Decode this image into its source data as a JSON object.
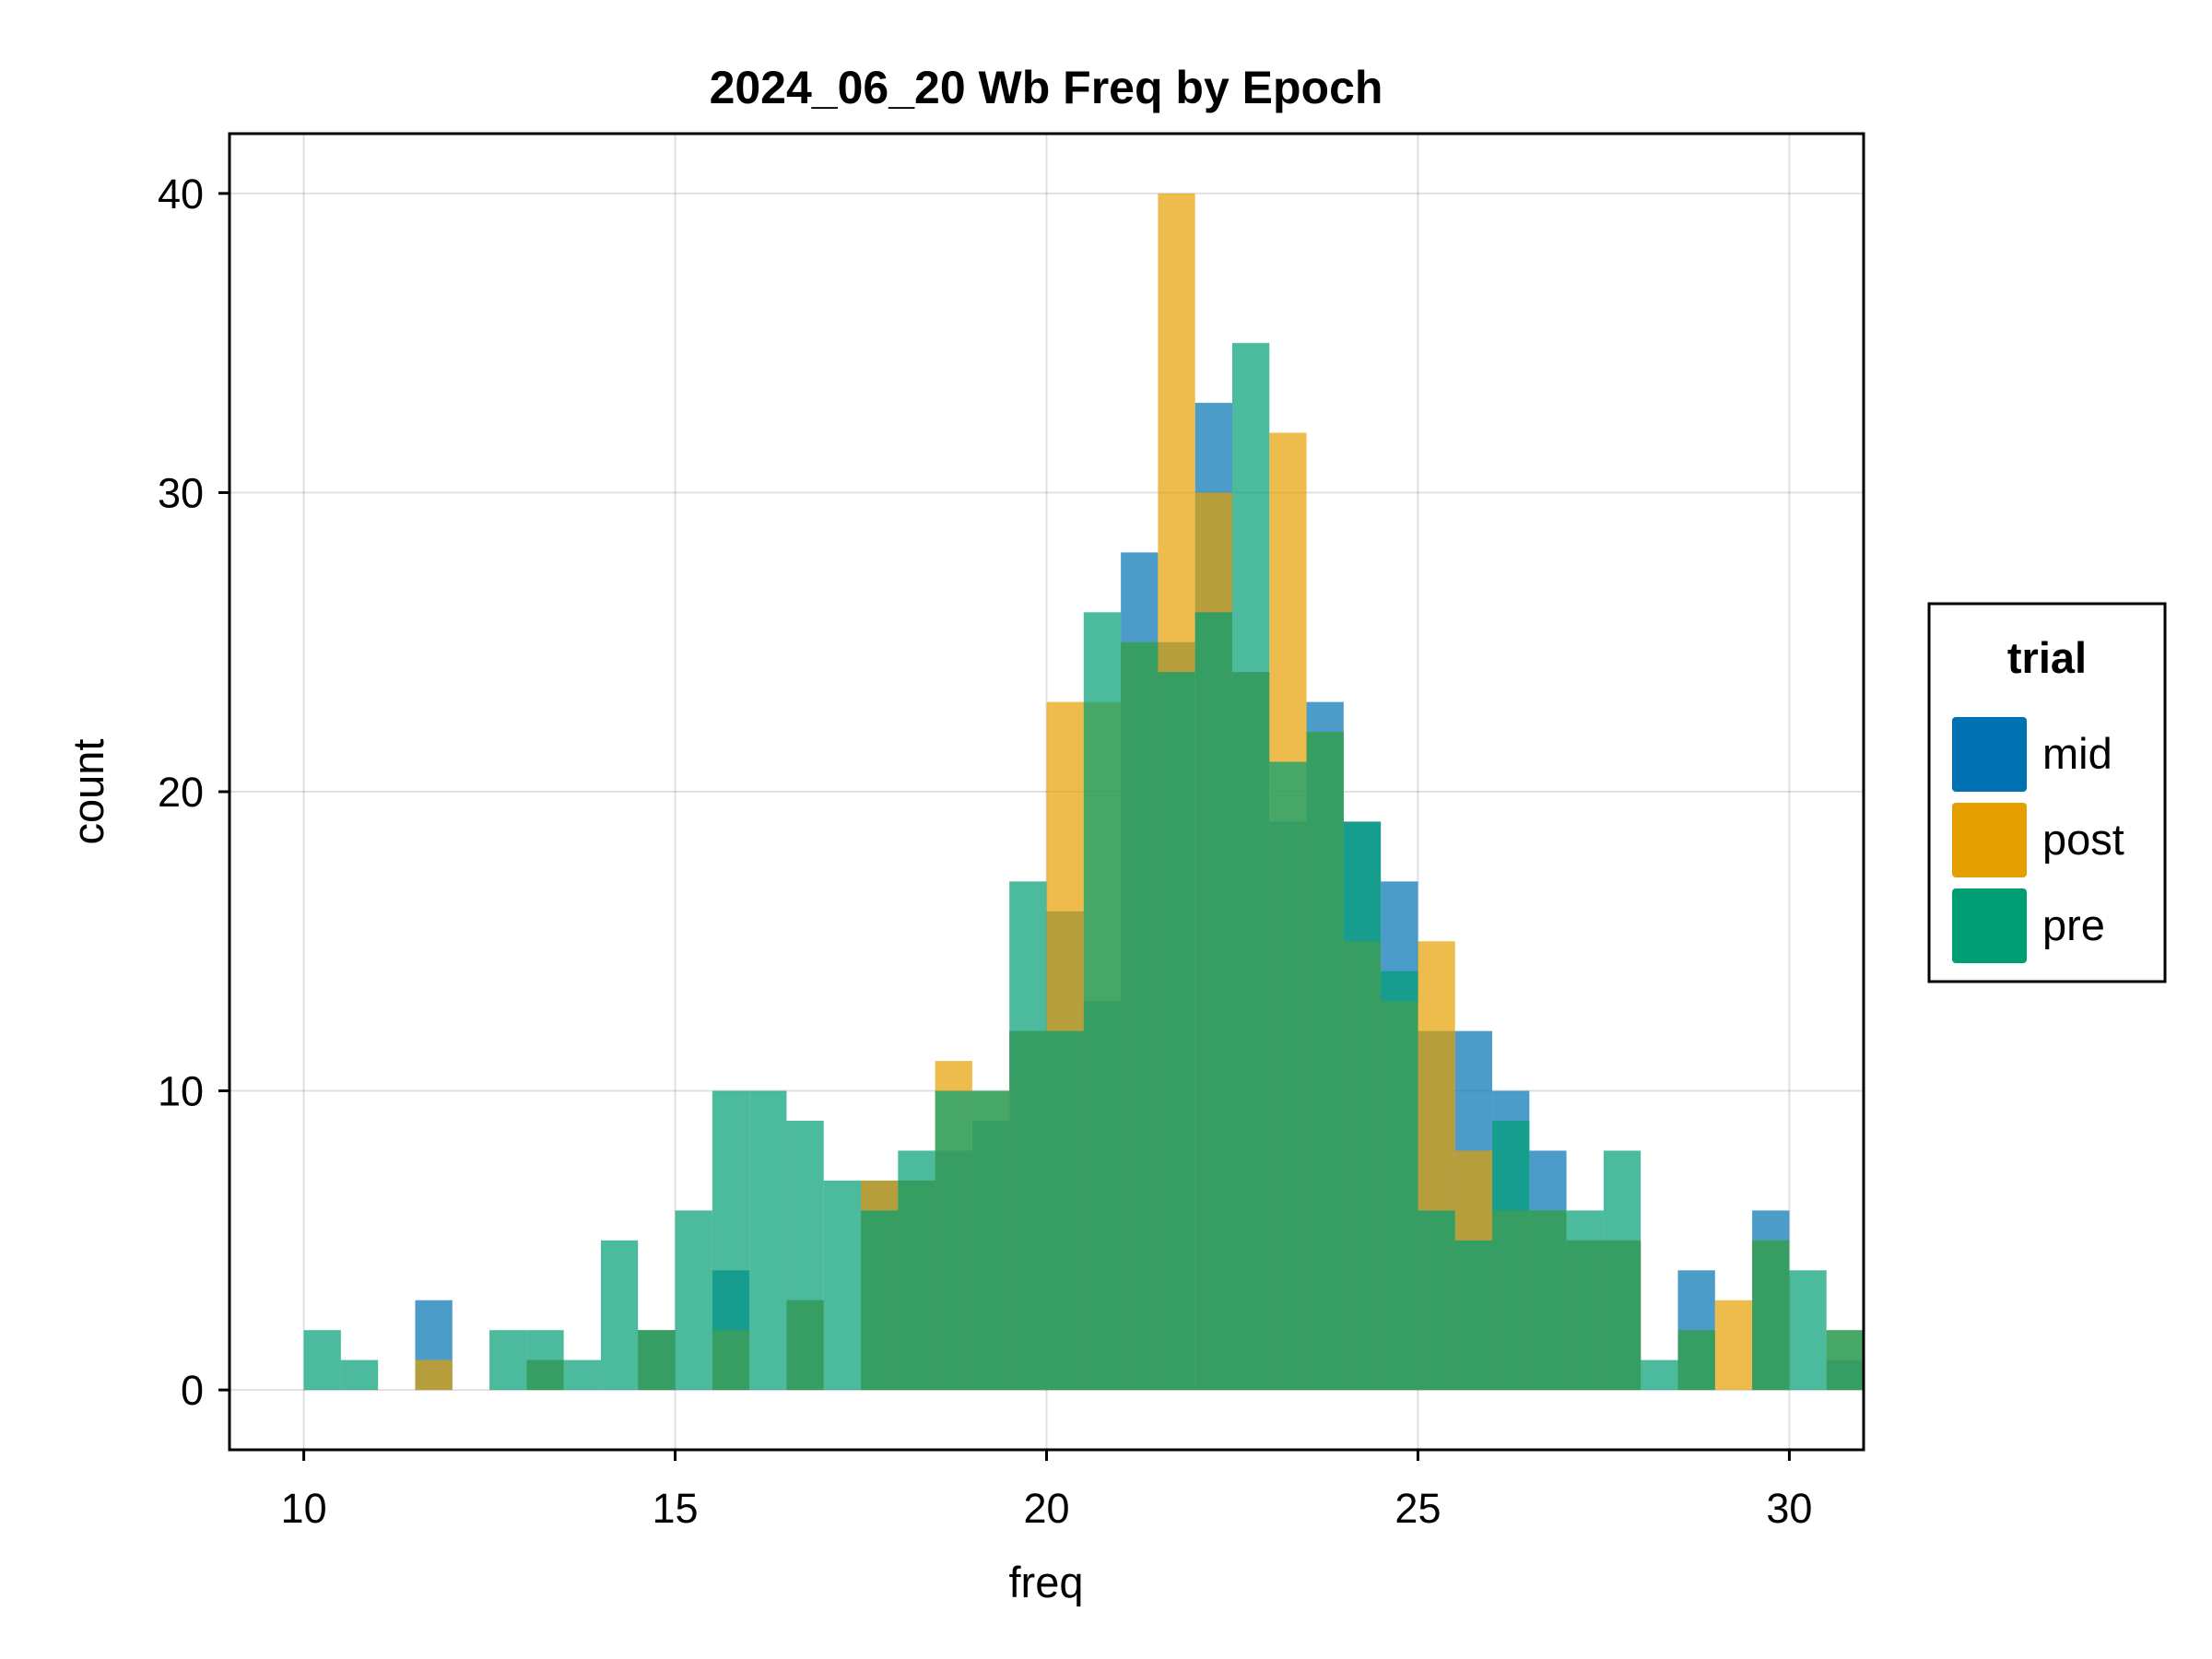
{
  "chart_data": {
    "type": "bar",
    "title": "2024_06_20 Wb Freq by Epoch",
    "xlabel": "freq",
    "ylabel": "count",
    "xlim": [
      9,
      31
    ],
    "ylim": [
      -2,
      42
    ],
    "xticks": [
      "10",
      "15",
      "20",
      "25",
      "30"
    ],
    "yticks": [
      "0",
      "10",
      "20",
      "30",
      "40"
    ],
    "grid": true,
    "legend": {
      "title": "trial",
      "position": "right"
    },
    "bin_edges_start": 10.0,
    "bin_width": 0.5,
    "series": [
      {
        "name": "mid",
        "color": "#0072B2",
        "values": [
          0,
          0,
          0,
          3,
          0,
          0,
          1,
          0,
          0,
          2,
          0,
          4,
          0,
          3,
          0,
          7,
          7,
          8,
          9,
          12,
          16,
          13,
          28,
          25,
          33,
          24,
          19,
          23,
          19,
          17,
          12,
          12,
          10,
          8,
          5,
          5,
          0,
          4,
          0,
          6,
          0,
          1
        ]
      },
      {
        "name": "post",
        "color": "#E69F00",
        "values": [
          0,
          0,
          0,
          1,
          0,
          0,
          1,
          0,
          0,
          2,
          0,
          2,
          0,
          3,
          0,
          7,
          7,
          11,
          10,
          12,
          23,
          23,
          25,
          40,
          30,
          24,
          32,
          22,
          15,
          13,
          15,
          8,
          6,
          6,
          5,
          5,
          0,
          2,
          3,
          5,
          0,
          2
        ]
      },
      {
        "name": "pre",
        "color": "#009E73",
        "values": [
          2,
          1,
          0,
          0,
          0,
          2,
          2,
          1,
          5,
          2,
          6,
          10,
          10,
          9,
          7,
          6,
          8,
          10,
          10,
          17,
          12,
          26,
          25,
          24,
          26,
          35,
          21,
          22,
          19,
          14,
          6,
          5,
          9,
          6,
          6,
          8,
          1,
          2,
          0,
          5,
          4,
          2
        ]
      }
    ]
  }
}
